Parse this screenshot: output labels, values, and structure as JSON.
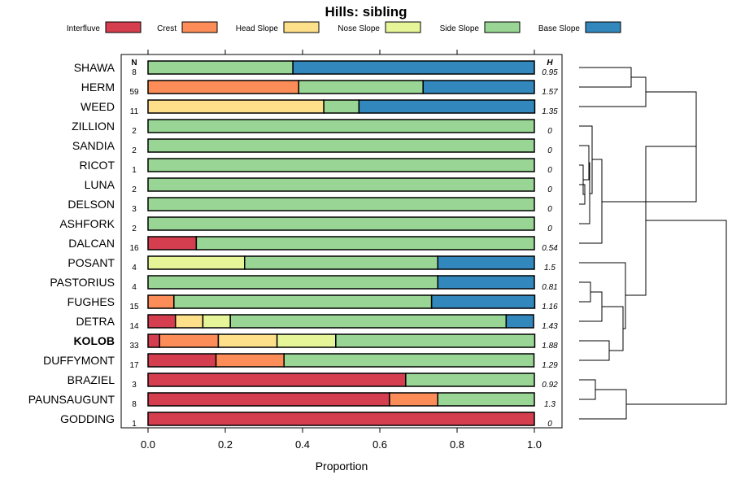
{
  "chart_data": {
    "type": "bar",
    "orientation": "horizontal",
    "stacked": true,
    "title": "Hills: sibling",
    "xlabel": "Proportion",
    "ylabel": "",
    "xlim": [
      0,
      1
    ],
    "x_ticks": [
      "0.0",
      "0.2",
      "0.4",
      "0.6",
      "0.8",
      "1.0"
    ],
    "n_header": "N",
    "h_header": "H",
    "legend": [
      {
        "name": "Interfluve",
        "color": "#d53e4f"
      },
      {
        "name": "Crest",
        "color": "#fc8d59"
      },
      {
        "name": "Head Slope",
        "color": "#fee08b"
      },
      {
        "name": "Nose Slope",
        "color": "#e6f598"
      },
      {
        "name": "Side Slope",
        "color": "#99d594"
      },
      {
        "name": "Base Slope",
        "color": "#3288bd"
      }
    ],
    "categories": [
      "SHAWA",
      "HERM",
      "WEED",
      "ZILLION",
      "SANDIA",
      "RICOT",
      "LUNA",
      "DELSON",
      "ASHFORK",
      "DALCAN",
      "POSANT",
      "PASTORIUS",
      "FUGHES",
      "DETRA",
      "KOLOB",
      "DUFFYMONT",
      "BRAZIEL",
      "PAUNSAUGUNT",
      "GODDING"
    ],
    "highlight": "KOLOB",
    "n": [
      "8",
      "59",
      "11",
      "2",
      "2",
      "1",
      "2",
      "3",
      "2",
      "16",
      "4",
      "4",
      "15",
      "14",
      "33",
      "17",
      "3",
      "8",
      "1"
    ],
    "h": [
      "0.95",
      "1.57",
      "1.35",
      "0",
      "0",
      "0",
      "0",
      "0",
      "0",
      "0.54",
      "1.5",
      "0.81",
      "1.16",
      "1.43",
      "1.88",
      "1.29",
      "0.92",
      "1.3",
      "0"
    ],
    "series": [
      {
        "name": "Interfluve",
        "values": [
          0,
          0,
          0,
          0,
          0,
          0,
          0,
          0,
          0,
          0.125,
          0,
          0,
          0,
          0.071,
          0.03,
          0.176,
          0.667,
          0.625,
          1.0
        ]
      },
      {
        "name": "Crest",
        "values": [
          0,
          0.39,
          0,
          0,
          0,
          0,
          0,
          0,
          0,
          0,
          0,
          0,
          0.067,
          0,
          0.152,
          0.176,
          0,
          0.125,
          0
        ]
      },
      {
        "name": "Head Slope",
        "values": [
          0,
          0,
          0.455,
          0,
          0,
          0,
          0,
          0,
          0,
          0,
          0,
          0,
          0,
          0.071,
          0.152,
          0,
          0,
          0,
          0
        ]
      },
      {
        "name": "Nose Slope",
        "values": [
          0,
          0,
          0,
          0,
          0,
          0,
          0,
          0,
          0,
          0,
          0.25,
          0,
          0,
          0.071,
          0.152,
          0,
          0,
          0,
          0
        ]
      },
      {
        "name": "Side Slope",
        "values": [
          0.375,
          0.322,
          0.091,
          1.0,
          1.0,
          1.0,
          1.0,
          1.0,
          1.0,
          0.875,
          0.5,
          0.75,
          0.667,
          0.714,
          0.515,
          0.647,
          0.333,
          0.25,
          0
        ]
      },
      {
        "name": "Base Slope",
        "values": [
          0.625,
          0.288,
          0.455,
          0,
          0,
          0,
          0,
          0,
          0,
          0,
          0.25,
          0.25,
          0.267,
          0.071,
          0,
          0,
          0,
          0,
          0
        ]
      }
    ],
    "dendrogram": "hierarchical clustering of the rows (leaf order matches categories)"
  }
}
